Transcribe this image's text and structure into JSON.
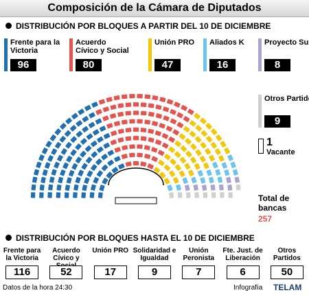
{
  "title": "Composición de la Cámara de Diputados",
  "chart_data": [
    {
      "type": "parliament",
      "title": "DISTRIBUCIÓN POR BLOQUES A PARTIR DEL 10 DE DICIEMBRE",
      "categories": [
        "Frente para la Victoria",
        "Acuerdo Cívico y Social",
        "Unión PRO",
        "Aliados K",
        "Proyecto Sur",
        "Otros Partidos",
        "Vacante"
      ],
      "values": [
        96,
        80,
        47,
        16,
        8,
        9,
        1
      ],
      "colors": [
        "#1f6fb2",
        "#e4544f",
        "#f2c70a",
        "#6cc3ec",
        "#aaa2cf",
        "#cfcfcf",
        "#ffffff"
      ],
      "total_label": "Total de bancas",
      "total": 257
    },
    {
      "type": "boxes",
      "title": "DISTRIBUCIÓN POR BLOQUES HASTA EL 10 DE DICIEMBRE",
      "categories": [
        "Frente para la Victoria",
        "Acuerdo Cívico y Social",
        "Unión PRO",
        "Solidaridad e Igualdad",
        "Unión Peronista",
        "Fte. Just. de Liberación",
        "Otros Partidos"
      ],
      "values": [
        116,
        52,
        17,
        9,
        7,
        6,
        50
      ]
    }
  ],
  "footer": {
    "note": "Datos de la hora 24:30",
    "credit": "Infografía",
    "agency": "TELAM"
  }
}
